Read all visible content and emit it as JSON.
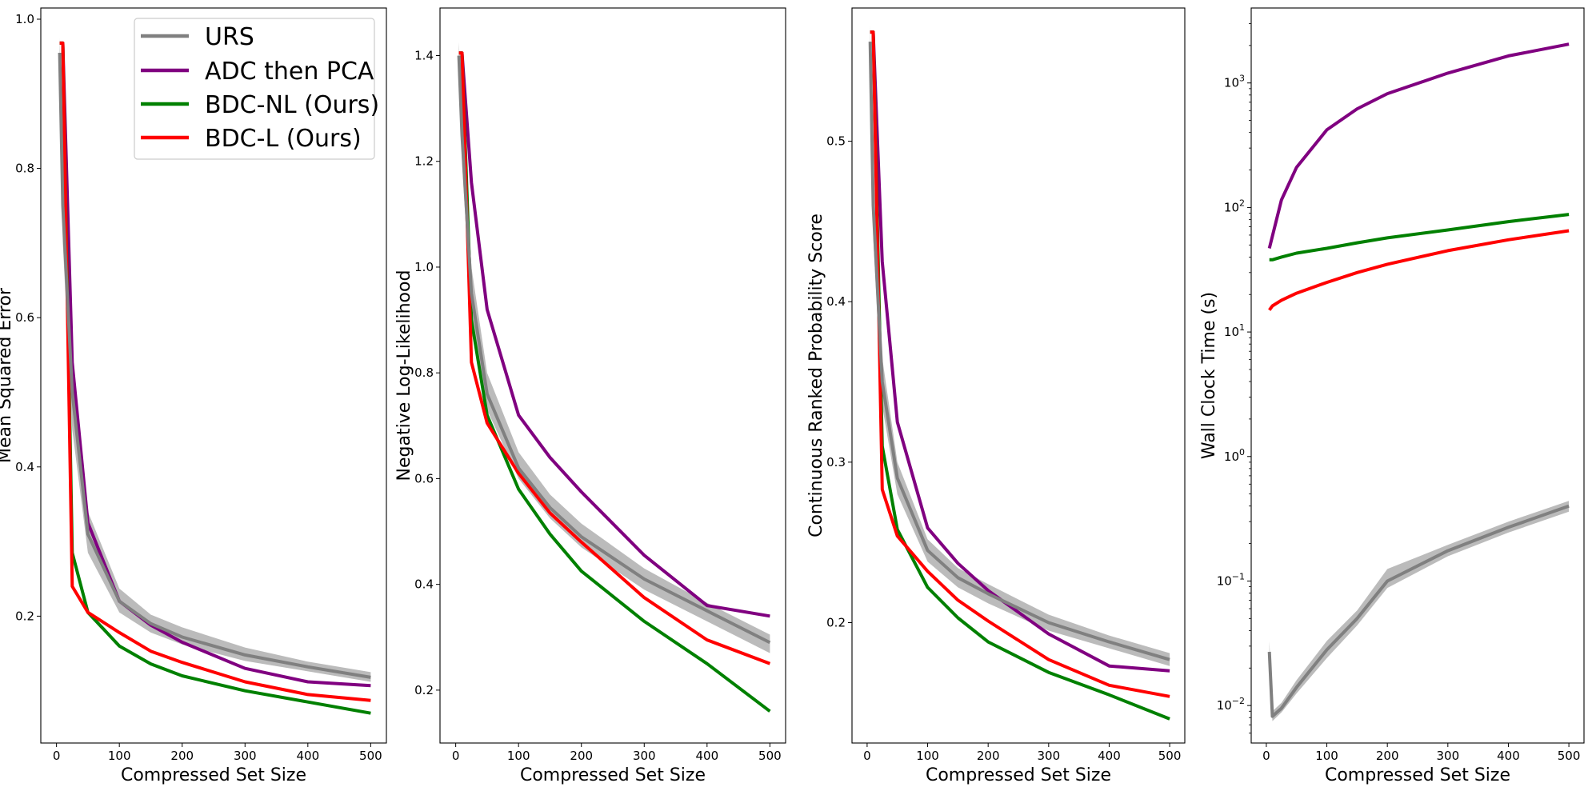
{
  "figure_size": "1990×989",
  "chart_data": [
    {
      "type": "line",
      "yscale": "linear",
      "xlabel": "Compressed Set Size",
      "ylabel": "Mean Squared Error",
      "xlim": [
        -25,
        525
      ],
      "ylim": [
        0.03,
        1.015
      ],
      "xticks": [
        0,
        100,
        200,
        300,
        400,
        500
      ],
      "yticks": [
        {
          "value": 0.2,
          "label": "0.2"
        },
        {
          "value": 0.4,
          "label": "0.4"
        },
        {
          "value": 0.6,
          "label": "0.6"
        },
        {
          "value": 0.8,
          "label": "0.8"
        },
        {
          "value": 1.0,
          "label": "1.0"
        }
      ],
      "legend": {
        "position": "top-right",
        "entries": [
          {
            "label": "URS",
            "color": "#808080"
          },
          {
            "label": "ADC then PCA",
            "color": "#800080"
          },
          {
            "label": "BDC-NL (Ours)",
            "color": "#008000"
          },
          {
            "label": "BDC-L (Ours)",
            "color": "#ff0000"
          }
        ]
      },
      "series": [
        {
          "name": "URS",
          "color": "#808080",
          "x": [
            5,
            10,
            25,
            50,
            100,
            150,
            200,
            300,
            400,
            500
          ],
          "y": [
            0.955,
            0.75,
            0.5,
            0.31,
            0.22,
            0.19,
            0.172,
            0.148,
            0.132,
            0.118
          ],
          "band_low": [
            0.93,
            0.7,
            0.45,
            0.285,
            0.205,
            0.178,
            0.162,
            0.14,
            0.126,
            0.112
          ],
          "band_high": [
            0.975,
            0.8,
            0.55,
            0.34,
            0.237,
            0.202,
            0.185,
            0.158,
            0.139,
            0.125
          ]
        },
        {
          "name": "ADC then PCA",
          "color": "#800080",
          "x": [
            5,
            10,
            25,
            50,
            100,
            150,
            200,
            300,
            400,
            500
          ],
          "y": [
            0.968,
            0.968,
            0.54,
            0.325,
            0.22,
            0.188,
            0.165,
            0.13,
            0.112,
            0.107
          ]
        },
        {
          "name": "BDC-NL (Ours)",
          "color": "#008000",
          "x": [
            5,
            10,
            25,
            50,
            100,
            150,
            200,
            300,
            400,
            500
          ],
          "y": [
            0.968,
            0.968,
            0.285,
            0.205,
            0.16,
            0.136,
            0.12,
            0.1,
            0.085,
            0.07
          ]
        },
        {
          "name": "BDC-L (Ours)",
          "color": "#ff0000",
          "x": [
            5,
            10,
            25,
            50,
            100,
            150,
            200,
            300,
            400,
            500
          ],
          "y": [
            0.968,
            0.968,
            0.24,
            0.205,
            0.178,
            0.153,
            0.138,
            0.112,
            0.095,
            0.087
          ]
        }
      ]
    },
    {
      "type": "line",
      "yscale": "linear",
      "xlabel": "Compressed Set Size",
      "ylabel": "Negative Log-Likelihood",
      "xlim": [
        -25,
        525
      ],
      "ylim": [
        0.1,
        1.49
      ],
      "xticks": [
        0,
        100,
        200,
        300,
        400,
        500
      ],
      "yticks": [
        {
          "value": 0.2,
          "label": "0.2"
        },
        {
          "value": 0.4,
          "label": "0.4"
        },
        {
          "value": 0.6,
          "label": "0.6"
        },
        {
          "value": 0.8,
          "label": "0.8"
        },
        {
          "value": 1.0,
          "label": "1.0"
        },
        {
          "value": 1.2,
          "label": "1.2"
        },
        {
          "value": 1.4,
          "label": "1.4"
        }
      ],
      "series": [
        {
          "name": "URS",
          "color": "#808080",
          "x": [
            5,
            10,
            25,
            50,
            100,
            150,
            200,
            300,
            400,
            500
          ],
          "y": [
            1.4,
            1.25,
            0.95,
            0.76,
            0.62,
            0.545,
            0.49,
            0.41,
            0.35,
            0.29
          ],
          "band_low": [
            1.37,
            1.2,
            0.9,
            0.73,
            0.6,
            0.525,
            0.47,
            0.39,
            0.33,
            0.27
          ],
          "band_high": [
            1.425,
            1.3,
            1.0,
            0.8,
            0.65,
            0.57,
            0.515,
            0.43,
            0.365,
            0.305
          ]
        },
        {
          "name": "ADC then PCA",
          "color": "#800080",
          "x": [
            5,
            10,
            25,
            50,
            100,
            150,
            200,
            300,
            400,
            500
          ],
          "y": [
            1.405,
            1.405,
            1.16,
            0.92,
            0.72,
            0.64,
            0.575,
            0.455,
            0.36,
            0.34
          ]
        },
        {
          "name": "BDC-NL (Ours)",
          "color": "#008000",
          "x": [
            5,
            10,
            25,
            50,
            100,
            150,
            200,
            300,
            400,
            500
          ],
          "y": [
            1.405,
            1.405,
            0.9,
            0.72,
            0.58,
            0.495,
            0.425,
            0.33,
            0.25,
            0.16
          ]
        },
        {
          "name": "BDC-L (Ours)",
          "color": "#ff0000",
          "x": [
            5,
            10,
            25,
            50,
            100,
            150,
            200,
            300,
            400,
            500
          ],
          "y": [
            1.405,
            1.405,
            0.82,
            0.705,
            0.61,
            0.535,
            0.48,
            0.375,
            0.295,
            0.25
          ]
        }
      ]
    },
    {
      "type": "line",
      "yscale": "linear",
      "xlabel": "Compressed Set Size",
      "ylabel": "Continuous Ranked Probability Score",
      "xlim": [
        -25,
        525
      ],
      "ylim": [
        0.125,
        0.583
      ],
      "xticks": [
        0,
        100,
        200,
        300,
        400,
        500
      ],
      "yticks": [
        {
          "value": 0.2,
          "label": "0.2"
        },
        {
          "value": 0.3,
          "label": "0.3"
        },
        {
          "value": 0.4,
          "label": "0.4"
        },
        {
          "value": 0.5,
          "label": "0.5"
        }
      ],
      "series": [
        {
          "name": "URS",
          "color": "#808080",
          "x": [
            5,
            10,
            25,
            50,
            100,
            150,
            200,
            300,
            400,
            500
          ],
          "y": [
            0.562,
            0.46,
            0.35,
            0.29,
            0.245,
            0.228,
            0.218,
            0.2,
            0.188,
            0.177
          ],
          "band_low": [
            0.55,
            0.44,
            0.335,
            0.28,
            0.238,
            0.222,
            0.212,
            0.195,
            0.184,
            0.173
          ],
          "band_high": [
            0.572,
            0.48,
            0.365,
            0.3,
            0.252,
            0.234,
            0.224,
            0.205,
            0.192,
            0.181
          ]
        },
        {
          "name": "ADC then PCA",
          "color": "#800080",
          "x": [
            5,
            10,
            25,
            50,
            100,
            150,
            200,
            300,
            400,
            500
          ],
          "y": [
            0.568,
            0.568,
            0.425,
            0.325,
            0.259,
            0.237,
            0.22,
            0.193,
            0.173,
            0.17
          ]
        },
        {
          "name": "BDC-NL (Ours)",
          "color": "#008000",
          "x": [
            5,
            10,
            25,
            50,
            100,
            150,
            200,
            300,
            400,
            500
          ],
          "y": [
            0.568,
            0.568,
            0.31,
            0.258,
            0.222,
            0.203,
            0.188,
            0.169,
            0.155,
            0.14
          ]
        },
        {
          "name": "BDC-L (Ours)",
          "color": "#ff0000",
          "x": [
            5,
            10,
            25,
            50,
            100,
            150,
            200,
            300,
            400,
            500
          ],
          "y": [
            0.568,
            0.568,
            0.283,
            0.254,
            0.232,
            0.214,
            0.201,
            0.177,
            0.161,
            0.154
          ]
        }
      ]
    },
    {
      "type": "line",
      "yscale": "log",
      "xlabel": "Compressed Set Size",
      "ylabel": "Wall Clock Time (s)",
      "xlim": [
        -25,
        525
      ],
      "ylim": [
        0.005,
        4000
      ],
      "xticks": [
        0,
        100,
        200,
        300,
        400,
        500
      ],
      "yticks": [
        {
          "value": 0.01,
          "base": "10",
          "exp": "−2"
        },
        {
          "value": 0.1,
          "base": "10",
          "exp": "−1"
        },
        {
          "value": 1,
          "base": "10",
          "exp": "0"
        },
        {
          "value": 10,
          "base": "10",
          "exp": "1"
        },
        {
          "value": 100,
          "base": "10",
          "exp": "2"
        },
        {
          "value": 1000,
          "base": "10",
          "exp": "3"
        }
      ],
      "series": [
        {
          "name": "URS",
          "color": "#808080",
          "x": [
            5,
            10,
            25,
            50,
            100,
            150,
            200,
            300,
            400,
            500
          ],
          "y": [
            0.027,
            0.0082,
            0.0095,
            0.014,
            0.028,
            0.05,
            0.1,
            0.175,
            0.27,
            0.4
          ],
          "band_low": [
            0.022,
            0.0075,
            0.0088,
            0.0125,
            0.024,
            0.044,
            0.088,
            0.158,
            0.245,
            0.36
          ],
          "band_high": [
            0.033,
            0.009,
            0.0105,
            0.016,
            0.033,
            0.058,
            0.125,
            0.195,
            0.3,
            0.44
          ]
        },
        {
          "name": "ADC then PCA",
          "color": "#800080",
          "x": [
            5,
            25,
            50,
            100,
            150,
            200,
            300,
            400,
            500
          ],
          "y": [
            47,
            115,
            210,
            420,
            620,
            820,
            1200,
            1650,
            2050
          ]
        },
        {
          "name": "BDC-NL (Ours)",
          "color": "#008000",
          "x": [
            5,
            10,
            25,
            50,
            100,
            150,
            200,
            300,
            400,
            500
          ],
          "y": [
            38,
            38,
            40,
            43,
            47,
            52,
            57,
            66,
            77,
            88
          ]
        },
        {
          "name": "BDC-L (Ours)",
          "color": "#ff0000",
          "x": [
            5,
            10,
            25,
            50,
            100,
            150,
            200,
            300,
            400,
            500
          ],
          "y": [
            15,
            16.2,
            18,
            20.5,
            25,
            30,
            35,
            45,
            55,
            65
          ]
        }
      ]
    }
  ]
}
